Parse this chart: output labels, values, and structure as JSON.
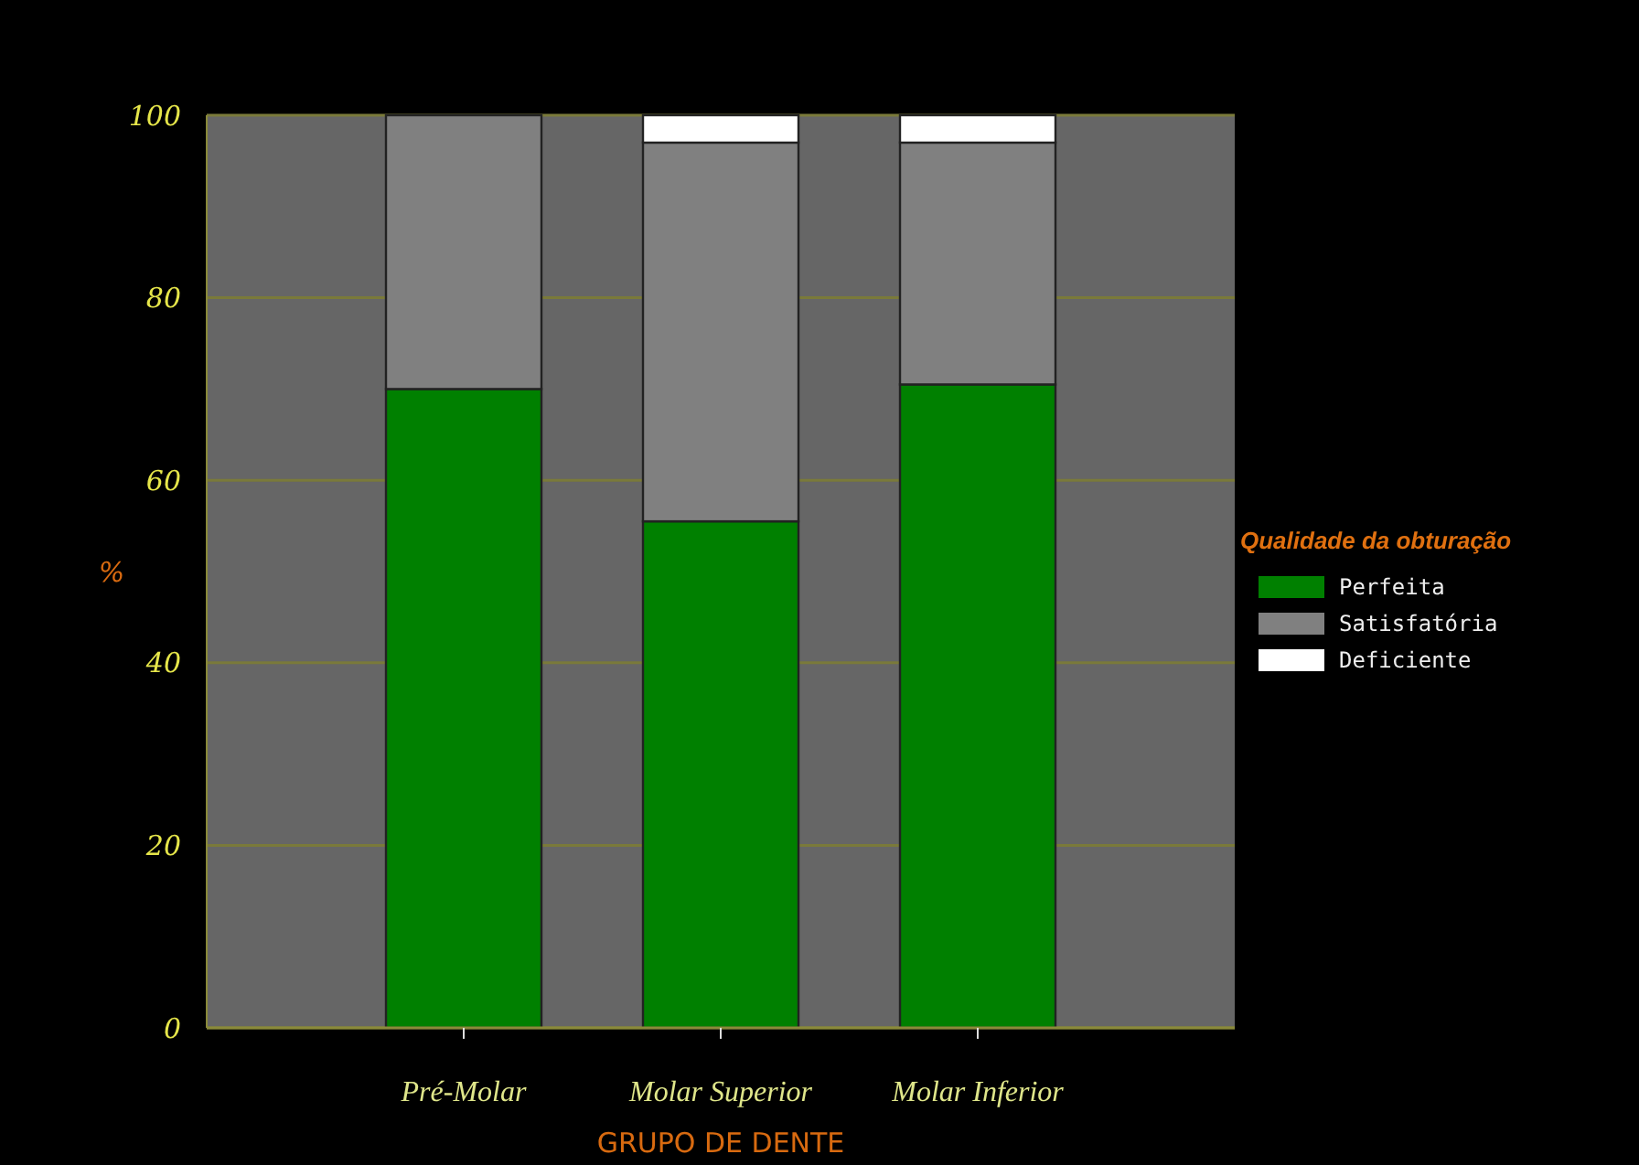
{
  "chart_data": {
    "type": "bar",
    "stacked": true,
    "categories": [
      "Pré-Molar",
      "Molar Superior",
      "Molar Inferior"
    ],
    "series": [
      {
        "name": "Perfeita",
        "color": "#008000",
        "values": [
          70,
          55.5,
          70.5
        ]
      },
      {
        "name": "Satisfatória",
        "color": "#808080",
        "values": [
          30,
          41.5,
          26.5
        ]
      },
      {
        "name": "Deficiente",
        "color": "#ffffff",
        "values": [
          0,
          3,
          3
        ]
      }
    ],
    "ylim": [
      0,
      100
    ],
    "yticks": [
      0,
      20,
      40,
      60,
      80,
      100
    ],
    "ylabel": "%",
    "xlabel": "GRUPO DE DENTE",
    "legend_title": "Qualidade da obturação",
    "legend": "right",
    "grid": "y"
  }
}
